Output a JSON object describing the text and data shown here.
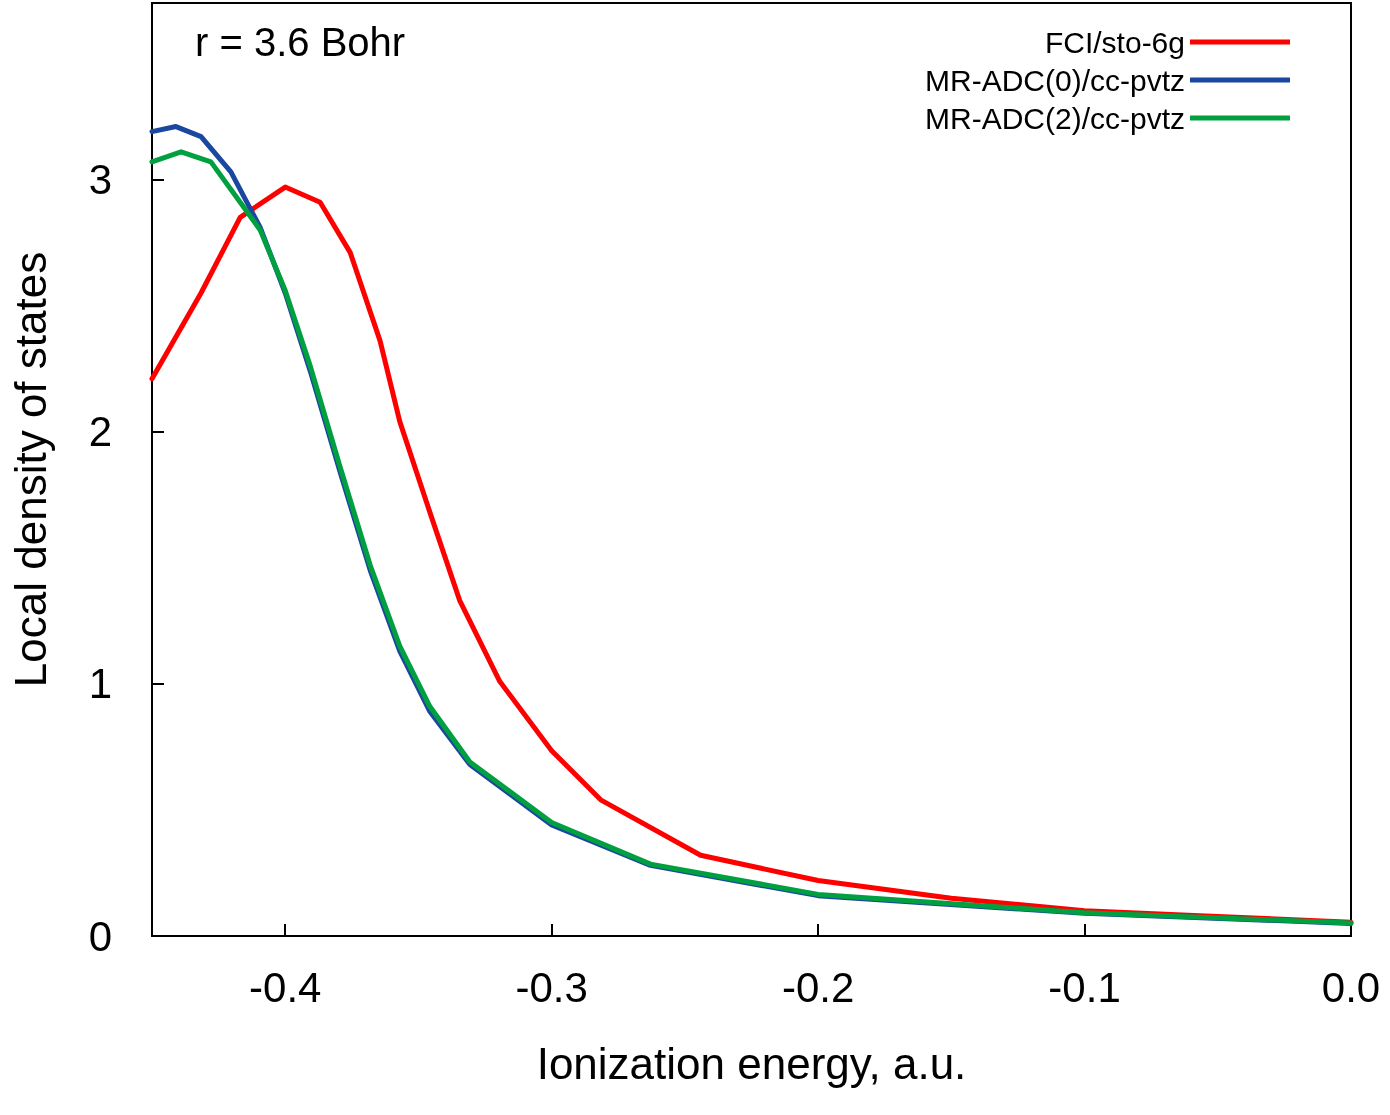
{
  "chart_data": {
    "type": "line",
    "xlabel": "Ionization energy, a.u.",
    "ylabel": "Local density of states",
    "annotations": [
      "r = 3.6 Bohr"
    ],
    "xlim": [
      -0.45,
      0.0
    ],
    "xticks": [
      -0.4,
      -0.3,
      -0.2,
      -0.1,
      {
        "value": 0,
        "label": "0.0"
      }
    ],
    "ylim": [
      0,
      3.7
    ],
    "yticks": [
      0,
      1,
      2,
      3
    ],
    "grid": false,
    "legend": "top right",
    "marker": "none",
    "line_style": "solid",
    "series": [
      {
        "name": "FCI/sto-6g",
        "color": "#ff0000",
        "x": [
          -0.45,
          -0.4316,
          -0.4169,
          -0.4,
          -0.3869,
          -0.3756,
          -0.3644,
          -0.357,
          -0.3457,
          -0.3345,
          -0.3195,
          -0.3,
          -0.2816,
          -0.2441,
          -0.2,
          -0.15,
          -0.1,
          -0.0568,
          0
        ],
        "values": [
          2.21,
          2.55,
          2.85,
          2.97,
          2.91,
          2.71,
          2.36,
          2.04,
          1.68,
          1.33,
          1.01,
          0.735,
          0.54,
          0.32,
          0.22,
          0.15,
          0.1,
          0.08,
          0.055
        ]
      },
      {
        "name": "MR-ADC(0)/cc-pvtz",
        "color": "#1a47a0",
        "x": [
          -0.45,
          -0.441,
          -0.4316,
          -0.4204,
          -0.4094,
          -0.4,
          -0.3906,
          -0.3794,
          -0.3681,
          -0.357,
          -0.3457,
          -0.3307,
          -0.3,
          -0.2629,
          -0.2,
          -0.1,
          0
        ],
        "values": [
          3.19,
          3.21,
          3.17,
          3.03,
          2.81,
          2.55,
          2.24,
          1.84,
          1.45,
          1.13,
          0.89,
          0.68,
          0.44,
          0.28,
          0.16,
          0.09,
          0.05
        ]
      },
      {
        "name": "MR-ADC(2)/cc-pvtz",
        "color": "#00a040",
        "x": [
          -0.45,
          -0.4391,
          -0.4279,
          -0.4169,
          -0.4094,
          -0.4,
          -0.3906,
          -0.3794,
          -0.3681,
          -0.357,
          -0.3457,
          -0.3307,
          -0.3,
          -0.2629,
          -0.2,
          -0.1,
          0
        ],
        "values": [
          3.07,
          3.11,
          3.07,
          2.91,
          2.8,
          2.56,
          2.26,
          1.86,
          1.47,
          1.15,
          0.91,
          0.69,
          0.45,
          0.285,
          0.165,
          0.092,
          0.052
        ]
      }
    ]
  }
}
